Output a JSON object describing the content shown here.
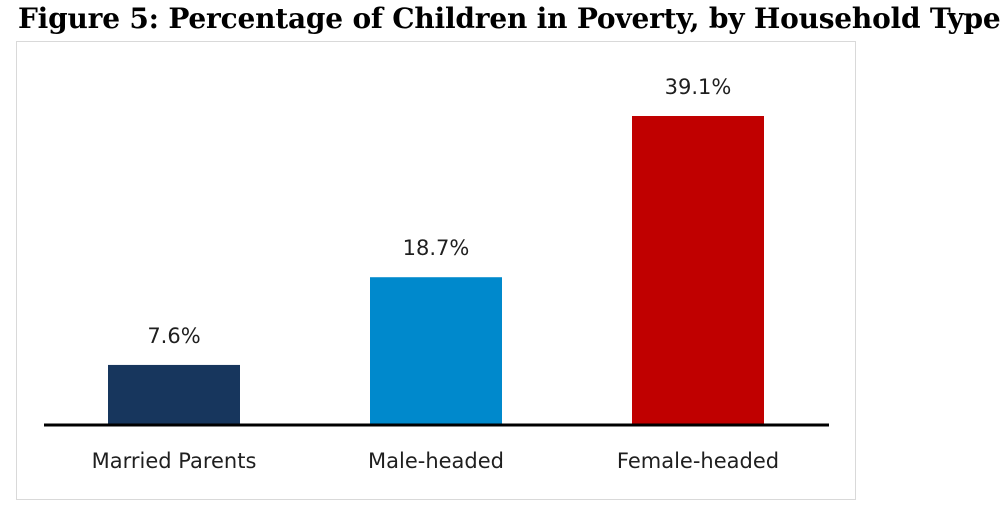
{
  "title": "Figure 5: Percentage of Children in Poverty, by Household Type",
  "chart_data": {
    "type": "bar",
    "categories": [
      "Married Parents",
      "Male-headed",
      "Female-headed"
    ],
    "values": [
      7.6,
      18.7,
      39.1
    ],
    "data_labels": [
      "7.6%",
      "18.7%",
      "39.1%"
    ],
    "colors": [
      "#17365d",
      "#0089cc",
      "#c00000"
    ],
    "ylim": [
      0,
      42
    ],
    "grid": false,
    "legend": "none"
  }
}
